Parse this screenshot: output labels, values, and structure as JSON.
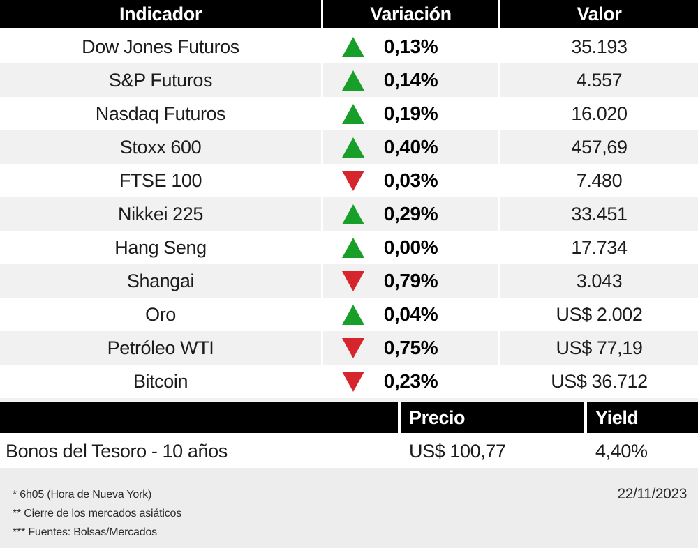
{
  "colors": {
    "up": "#179f29",
    "down": "#d4262c",
    "header_bg": "#000000",
    "alt_row_bg": "#f1f1f2",
    "footer_bg": "#ededee"
  },
  "header": {
    "indicator": "Indicador",
    "variation": "Variación",
    "value": "Valor"
  },
  "rows": [
    {
      "indicator": "Dow Jones Futuros",
      "direction": "up",
      "variation": "0,13%",
      "value": "35.193"
    },
    {
      "indicator": "S&P Futuros",
      "direction": "up",
      "variation": "0,14%",
      "value": "4.557"
    },
    {
      "indicator": "Nasdaq Futuros",
      "direction": "up",
      "variation": "0,19%",
      "value": "16.020"
    },
    {
      "indicator": "Stoxx 600",
      "direction": "up",
      "variation": "0,40%",
      "value": "457,69"
    },
    {
      "indicator": "FTSE 100",
      "direction": "down",
      "variation": "0,03%",
      "value": "7.480"
    },
    {
      "indicator": "Nikkei 225",
      "direction": "up",
      "variation": "0,29%",
      "value": "33.451"
    },
    {
      "indicator": "Hang Seng",
      "direction": "up",
      "variation": "0,00%",
      "value": "17.734"
    },
    {
      "indicator": "Shangai",
      "direction": "down",
      "variation": "0,79%",
      "value": "3.043"
    },
    {
      "indicator": "Oro",
      "direction": "up",
      "variation": "0,04%",
      "value": "US$ 2.002"
    },
    {
      "indicator": "Petróleo WTI",
      "direction": "down",
      "variation": "0,75%",
      "value": "US$ 77,19"
    },
    {
      "indicator": "Bitcoin",
      "direction": "down",
      "variation": "0,23%",
      "value": "US$ 36.712"
    }
  ],
  "bonds": {
    "header": {
      "price": "Precio",
      "yield": "Yield"
    },
    "row": {
      "name": "Bonos del Tesoro - 10 años",
      "price": "US$ 100,77",
      "yield": "4,40%"
    }
  },
  "footer": {
    "notes": [
      "* 6h05 (Hora de Nueva York)",
      "** Cierre de los mercados asiáticos",
      "*** Fuentes:  Bolsas/Mercados"
    ],
    "date": "22/11/2023"
  },
  "chart_data": {
    "type": "table",
    "title": "",
    "columns": [
      "Indicador",
      "Variación",
      "Valor"
    ],
    "rows": [
      [
        "Dow Jones Futuros",
        "+0,13%",
        "35.193"
      ],
      [
        "S&P Futuros",
        "+0,14%",
        "4.557"
      ],
      [
        "Nasdaq Futuros",
        "+0,19%",
        "16.020"
      ],
      [
        "Stoxx 600",
        "+0,40%",
        "457,69"
      ],
      [
        "FTSE 100",
        "-0,03%",
        "7.480"
      ],
      [
        "Nikkei 225",
        "+0,29%",
        "33.451"
      ],
      [
        "Hang Seng",
        "+0,00%",
        "17.734"
      ],
      [
        "Shangai",
        "-0,79%",
        "3.043"
      ],
      [
        "Oro",
        "+0,04%",
        "US$ 2.002"
      ],
      [
        "Petróleo WTI",
        "-0,75%",
        "US$ 77,19"
      ],
      [
        "Bitcoin",
        "-0,23%",
        "US$ 36.712"
      ]
    ],
    "secondary_table": {
      "columns": [
        "",
        "Precio",
        "Yield"
      ],
      "rows": [
        [
          "Bonos del Tesoro - 10 años",
          "US$ 100,77",
          "4,40%"
        ]
      ]
    },
    "annotations": [
      "* 6h05 (Hora de Nueva York)",
      "** Cierre de los mercados asiáticos",
      "*** Fuentes:  Bolsas/Mercados",
      "22/11/2023"
    ]
  }
}
